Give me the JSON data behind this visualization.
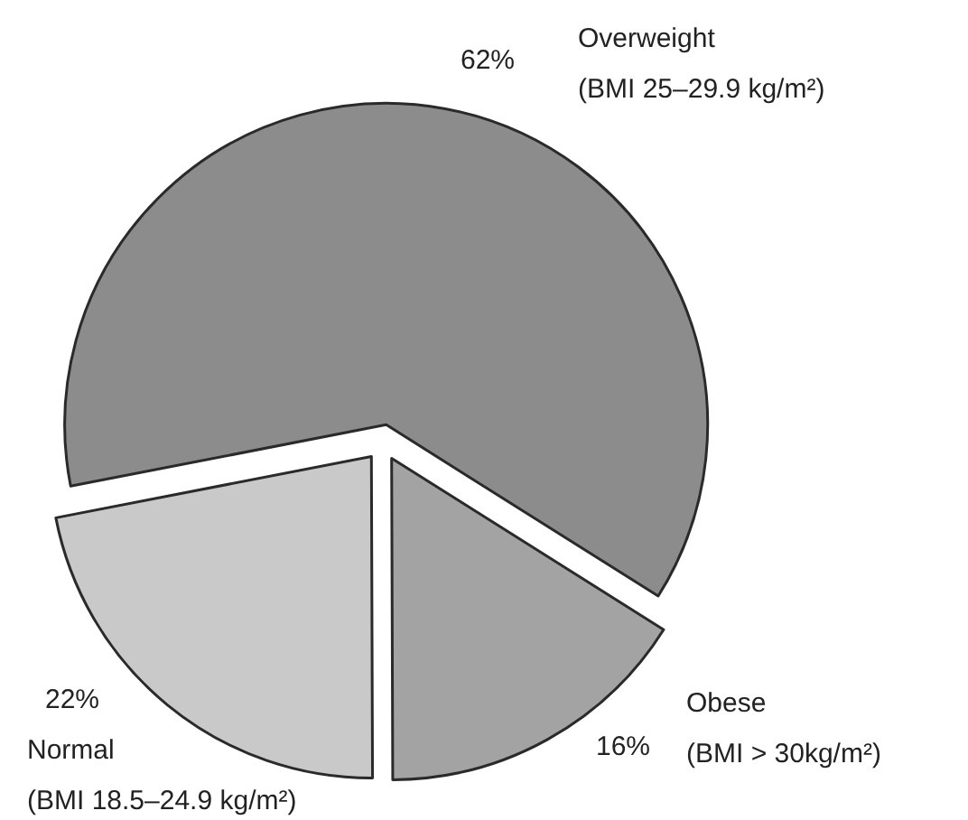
{
  "chart_data": {
    "type": "pie",
    "categories": [
      "Overweight (BMI 25–29.9 kg/m²)",
      "Obese (BMI > 30kg/m²)",
      "Normal (BMI 18.5–24.9 kg/m²)"
    ],
    "values": [
      62,
      16,
      22
    ],
    "colors": [
      "#8c8c8c",
      "#a3a3a3",
      "#c9c9c9"
    ],
    "value_labels": [
      "62%",
      "16%",
      "22%"
    ]
  }
}
